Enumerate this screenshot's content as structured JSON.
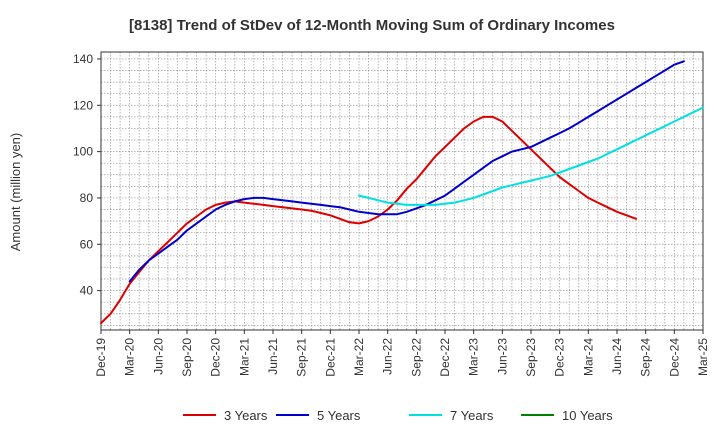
{
  "chart_data": {
    "type": "line",
    "title": "[8138]  Trend of StDev of 12-Month Moving Sum of Ordinary Incomes",
    "xlabel": "",
    "ylabel": "Amount (million yen)",
    "ylim": [
      23,
      143
    ],
    "yticks": [
      40,
      60,
      80,
      100,
      120,
      140
    ],
    "grid": true,
    "legend_position": "bottom",
    "x_tick_labels": [
      "Dec-19",
      "Mar-20",
      "Jun-20",
      "Sep-20",
      "Dec-20",
      "Mar-21",
      "Jun-21",
      "Sep-21",
      "Dec-21",
      "Mar-22",
      "Jun-22",
      "Sep-22",
      "Dec-22",
      "Mar-23",
      "Jun-23",
      "Sep-23",
      "Dec-23",
      "Mar-24",
      "Jun-24",
      "Sep-24",
      "Dec-24",
      "Mar-25"
    ],
    "series": [
      {
        "name": "3 Years",
        "color": "#dd0000",
        "start_month_index": 0,
        "values": [
          26,
          30,
          36,
          43,
          48,
          53,
          57,
          61,
          65,
          69,
          72,
          75,
          77,
          78,
          78.5,
          78,
          77.5,
          77,
          76.5,
          76,
          75.5,
          75,
          74.5,
          73.5,
          72.5,
          71,
          69.5,
          69,
          70,
          72,
          75,
          79,
          84,
          88,
          93,
          98,
          102,
          106,
          110,
          113,
          115,
          115,
          113,
          109,
          105,
          101,
          97,
          93,
          89,
          86,
          83,
          80,
          78,
          76,
          74,
          72.5,
          71
        ]
      },
      {
        "name": "5 Years",
        "color": "#0000cc",
        "start_month_index": 3,
        "values": [
          44,
          49,
          53,
          56,
          59,
          62,
          66,
          69,
          72,
          75,
          77,
          78.5,
          79.5,
          80,
          80,
          79.5,
          79,
          78.5,
          78,
          77.5,
          77,
          76.5,
          76,
          75,
          74,
          73.5,
          73,
          73,
          73,
          74,
          75.5,
          77,
          79,
          81,
          84,
          87,
          90,
          93,
          96,
          98,
          100,
          101,
          102,
          104,
          106,
          108,
          110,
          112.5,
          115,
          117.5,
          120,
          122.5,
          125,
          127.5,
          130,
          132.5,
          135,
          137.5,
          139
        ]
      },
      {
        "name": "7 Years",
        "color": "#00e0e0",
        "start_month_index": 27,
        "values": [
          81,
          80,
          79,
          78,
          77.5,
          77,
          77,
          77,
          77,
          77.5,
          78,
          79,
          80,
          81.5,
          83,
          84.5,
          85.5,
          86.5,
          87.5,
          88.5,
          89.5,
          91,
          92.5,
          94,
          95.5,
          97,
          99,
          101,
          103,
          105,
          107,
          109,
          111,
          113,
          115,
          117,
          119
        ]
      },
      {
        "name": "10 Years",
        "color": "#008000",
        "start_month_index": 0,
        "values": []
      }
    ]
  }
}
